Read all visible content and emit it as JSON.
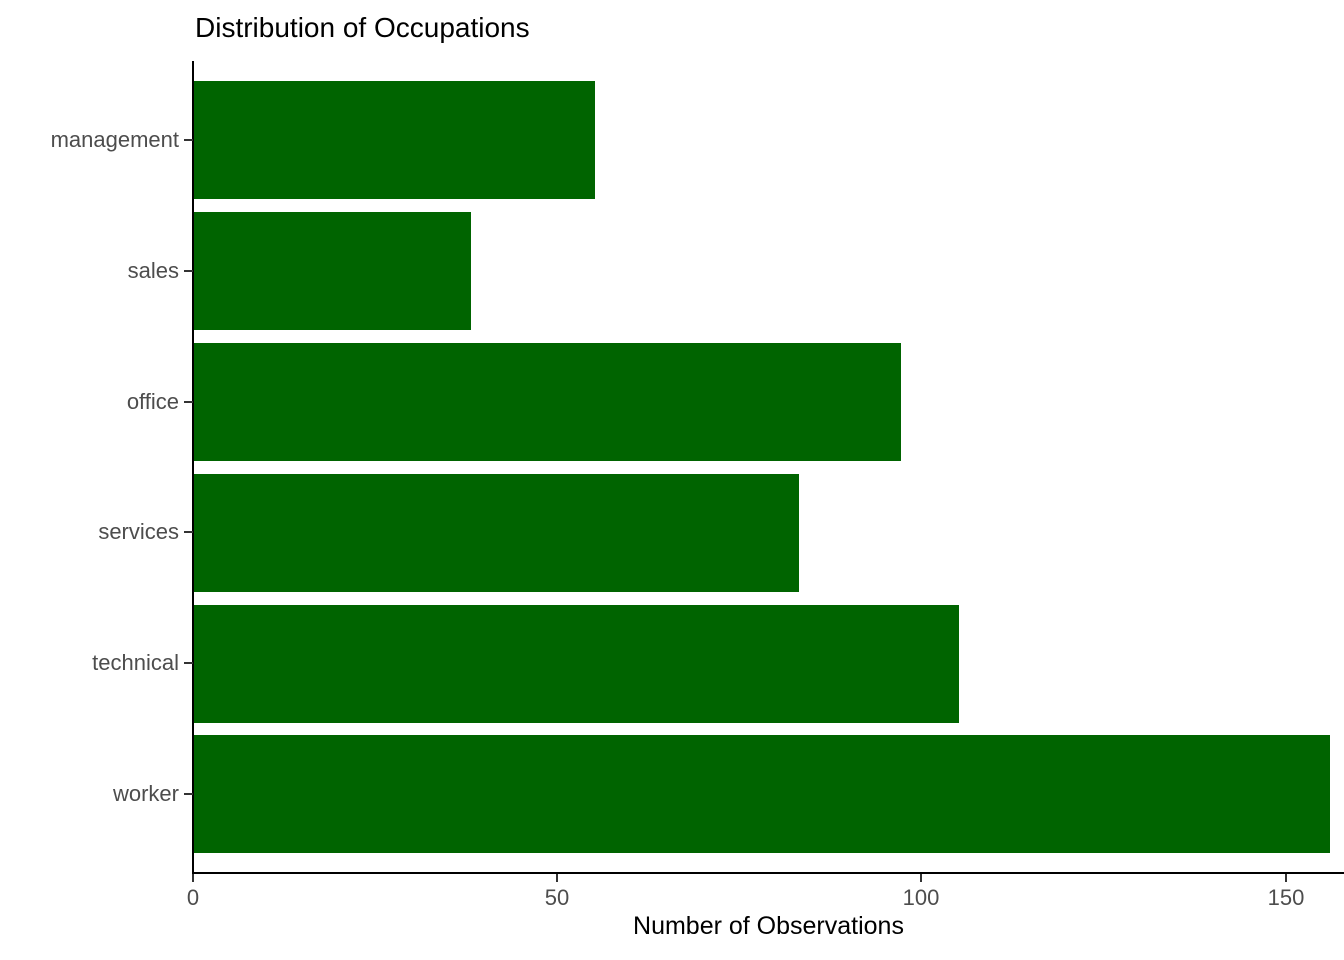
{
  "chart_data": {
    "type": "bar",
    "orientation": "horizontal",
    "title": "Distribution of Occupations",
    "xlabel": "Number of Observations",
    "ylabel": "",
    "categories": [
      "management",
      "sales",
      "office",
      "services",
      "technical",
      "worker"
    ],
    "values": [
      55,
      38,
      97,
      83,
      105,
      156
    ],
    "x_ticks": [
      0,
      50,
      100,
      150
    ],
    "xlim": [
      0,
      158
    ],
    "grid": false,
    "legend": false,
    "bar_color": "#006400",
    "axis_line_color": "#000000",
    "tick_color": "#333333",
    "tick_label_color": "#4d4d4d",
    "title_color": "#000000",
    "axis_title_color": "#000000"
  }
}
